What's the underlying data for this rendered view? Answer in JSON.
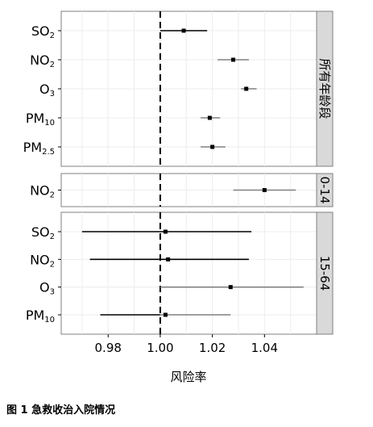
{
  "chart_data": {
    "type": "forest",
    "xlabel": "风险率",
    "reference_value": 1.0,
    "xlim": [
      0.962,
      1.06
    ],
    "xticks": [
      0.98,
      1.0,
      1.02,
      1.04
    ],
    "xtick_labels": [
      "0.98",
      "1.00",
      "1.02",
      "1.04"
    ],
    "grid": true,
    "facets": [
      {
        "strip_label": "所有年龄段",
        "rows": [
          {
            "label": "SO2",
            "base": "SO",
            "sub": "2",
            "estimate": 1.009,
            "lower": 1.0,
            "upper": 1.018
          },
          {
            "label": "NO2",
            "base": "NO",
            "sub": "2",
            "estimate": 1.028,
            "lower": 1.022,
            "upper": 1.034
          },
          {
            "label": "O3",
            "base": "O",
            "sub": "3",
            "estimate": 1.033,
            "lower": 1.031,
            "upper": 1.037
          },
          {
            "label": "PM10",
            "base": "PM",
            "sub": "10",
            "estimate": 1.019,
            "lower": 1.0155,
            "upper": 1.023
          },
          {
            "label": "PM2.5",
            "base": "PM",
            "sub": "2.5",
            "estimate": 1.02,
            "lower": 1.0155,
            "upper": 1.025
          }
        ]
      },
      {
        "strip_label": "0-14",
        "rows": [
          {
            "label": "NO2",
            "base": "NO",
            "sub": "2",
            "estimate": 1.04,
            "lower": 1.028,
            "upper": 1.052
          }
        ]
      },
      {
        "strip_label": "15-64",
        "rows": [
          {
            "label": "SO2",
            "base": "SO",
            "sub": "2",
            "estimate": 1.002,
            "lower": 0.97,
            "upper": 1.035
          },
          {
            "label": "NO2",
            "base": "NO",
            "sub": "2",
            "estimate": 1.003,
            "lower": 0.973,
            "upper": 1.034
          },
          {
            "label": "O3",
            "base": "O",
            "sub": "3",
            "estimate": 1.027,
            "lower": 1.0,
            "upper": 1.055
          },
          {
            "label": "PM10",
            "base": "PM",
            "sub": "10",
            "estimate": 1.002,
            "lower": 0.977,
            "upper": 1.027
          }
        ]
      }
    ]
  },
  "caption": "图 1  急救收治入院情况",
  "colors": {
    "line_dark": "#000000",
    "line_grey": "#808080",
    "strip_fill": "#d9d9d9",
    "grid": "#ececec"
  }
}
